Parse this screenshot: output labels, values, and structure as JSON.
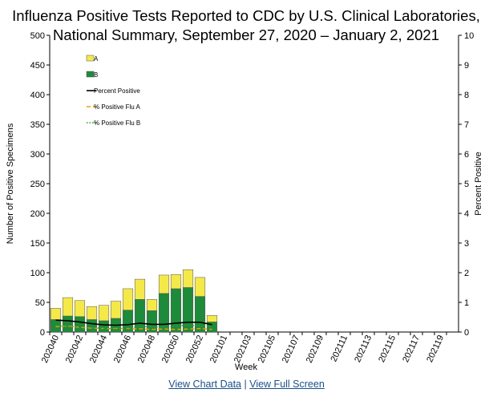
{
  "chart_data": {
    "type": "bar",
    "title": [
      "Influenza Positive Tests Reported to CDC by U.S. Clinical Laboratories,",
      "National Summary, September 27, 2020 – January 2, 2021"
    ],
    "x_label": "Week",
    "y_label": "Number of Positive Specimens",
    "y2_label": "Percent Positive",
    "categories": [
      "202040",
      null,
      "202042",
      null,
      "202044",
      null,
      "202046",
      null,
      "202048",
      null,
      "202050",
      null,
      "202052",
      null,
      "202101",
      null,
      "202103",
      null,
      "202105",
      null,
      "202107",
      null,
      "202109",
      null,
      "202111",
      null,
      "202113",
      null,
      "202115",
      null,
      "202117",
      null,
      "202119",
      null
    ],
    "series": [
      {
        "name": "B",
        "color": "#1e8b3a",
        "values": [
          21,
          27,
          26,
          21,
          19,
          23,
          37,
          55,
          36,
          65,
          73,
          75,
          60,
          17,
          null,
          null,
          null,
          null,
          null,
          null,
          null,
          null,
          null,
          null,
          null,
          null,
          null,
          null,
          null,
          null,
          null,
          null,
          null,
          null
        ]
      },
      {
        "name": "A",
        "color": "#f5e94a",
        "values": [
          19,
          31,
          27,
          22,
          26,
          29,
          36,
          34,
          19,
          31,
          24,
          30,
          32,
          11,
          null,
          null,
          null,
          null,
          null,
          null,
          null,
          null,
          null,
          null,
          null,
          null,
          null,
          null,
          null,
          null,
          null,
          null,
          null,
          null
        ]
      },
      {
        "name": "Percent Positive",
        "type": "line",
        "axis": "y2",
        "color": "#000000",
        "dash": "none",
        "values": [
          0.4,
          0.38,
          0.34,
          0.28,
          0.24,
          0.23,
          0.25,
          0.3,
          0.26,
          0.26,
          0.3,
          0.33,
          0.33,
          0.25,
          null,
          null,
          null,
          null,
          null,
          null,
          null,
          null,
          null,
          null,
          null,
          null,
          null,
          null,
          null,
          null,
          null,
          null,
          null,
          null
        ]
      },
      {
        "name": "% Positive Flu A",
        "type": "line",
        "axis": "y2",
        "color": "#f0a000",
        "dash": "5,3",
        "values": [
          0.18,
          0.2,
          0.16,
          0.13,
          0.12,
          0.12,
          0.12,
          0.11,
          0.09,
          0.1,
          0.09,
          0.1,
          0.12,
          0.09,
          null,
          null,
          null,
          null,
          null,
          null,
          null,
          null,
          null,
          null,
          null,
          null,
          null,
          null,
          null,
          null,
          null,
          null,
          null,
          null
        ]
      },
      {
        "name": "% Positive Flu B",
        "type": "line",
        "axis": "y2",
        "color": "#2e9e2e",
        "dash": "1.5,2",
        "values": [
          0.22,
          0.18,
          0.18,
          0.15,
          0.12,
          0.11,
          0.13,
          0.19,
          0.17,
          0.16,
          0.21,
          0.23,
          0.21,
          0.16,
          null,
          null,
          null,
          null,
          null,
          null,
          null,
          null,
          null,
          null,
          null,
          null,
          null,
          null,
          null,
          null,
          null,
          null,
          null,
          null
        ]
      }
    ],
    "ylim": [
      0,
      500
    ],
    "yticks": [
      0,
      50,
      100,
      150,
      200,
      250,
      300,
      350,
      400,
      450,
      500
    ],
    "y2lim": [
      0,
      10
    ],
    "y2ticks": [
      0,
      1,
      2,
      3,
      4,
      5,
      6,
      7,
      8,
      9,
      10
    ],
    "legend": "top-left"
  },
  "links": [
    "View Chart Data",
    "View Full Screen"
  ]
}
